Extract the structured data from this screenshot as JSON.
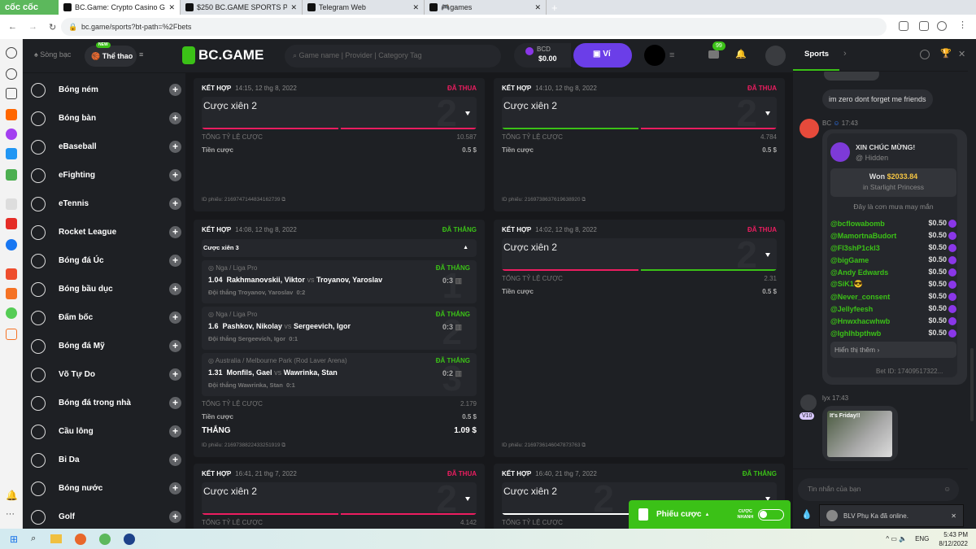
{
  "browser": {
    "brand": "cốc cốc",
    "tabs": [
      {
        "title": "BC.Game: Crypto Casino Gam",
        "active": true
      },
      {
        "title": "$250 BC.GAME SPORTS PARL"
      },
      {
        "title": "Telegram Web"
      },
      {
        "title": "🎮games"
      }
    ],
    "url": "bc.game/sports?bt-path=%2Fbets"
  },
  "header": {
    "casino": "Sòng bạc",
    "sports": "Thể thao",
    "new_badge": "NEW",
    "logo": "BC.GAME",
    "search_placeholder": "Game name | Provider | Category Tag",
    "currency": "BCD",
    "balance": "$0.00",
    "wallet": "Ví",
    "mail_count": "99"
  },
  "nav": {
    "items": [
      "Bóng ném",
      "Bóng bàn",
      "eBaseball",
      "eFighting",
      "eTennis",
      "Rocket League",
      "Bóng đá Úc",
      "Bóng bầu dục",
      "Đấm bốc",
      "Bóng đá Mỹ",
      "Võ Tự Do",
      "Bóng đá trong nhà",
      "Cầu lông",
      "Bi Da",
      "Bóng nước",
      "Golf"
    ]
  },
  "labels": {
    "type": "KẾT HỢP",
    "total_odds": "TỔNG TỶ LỆ CƯỢC",
    "stake": "Tiền cược",
    "ticket_id": "ID phiếu:",
    "win": "THẮNG",
    "lost": "ĐÃ THUA",
    "won": "ĐÃ THẮNG"
  },
  "bets": [
    {
      "time": "14:15, 12 thg 8, 2022",
      "status": "lost",
      "name": "Cược xiên 2",
      "count": "2",
      "legs": [
        "lost",
        "lost"
      ],
      "odds": "10.587",
      "stake": "0.5 $",
      "id": "2169747144834162739"
    },
    {
      "time": "14:10, 12 thg 8, 2022",
      "status": "lost",
      "name": "Cược xiên 2",
      "count": "2",
      "legs": [
        "won",
        "lost"
      ],
      "odds": "4.784",
      "stake": "0.5 $",
      "id": "2169738637619638920"
    },
    {
      "time": "14:08, 12 thg 8, 2022",
      "status": "won",
      "name": "Cược xiên 3",
      "expanded": true,
      "odds": "2.179",
      "stake": "0.5 $",
      "payout": "1.09 $",
      "id": "2169738822433251919",
      "selections": [
        {
          "league": "Nga / Liga Pro",
          "odds": "1.04",
          "home": "Rakhmanovskii, Viktor",
          "away": "Troyanov, Yaroslav",
          "pick": "Đội thắng Troyanov, Yaroslav",
          "pick_score": "0:2",
          "score": "0:3",
          "status": "ĐÃ THẮNG"
        },
        {
          "league": "Nga / Liga Pro",
          "odds": "1.6",
          "home": "Pashkov, Nikolay",
          "away": "Sergeevich, Igor",
          "pick": "Đội thắng Sergeevich, Igor",
          "pick_score": "0:1",
          "score": "0:3",
          "status": "ĐÃ THẮNG"
        },
        {
          "league": "Australia / Melbourne Park (Rod Laver Arena)",
          "odds": "1.31",
          "home": "Monfils, Gael",
          "away": "Wawrinka, Stan",
          "pick": "Đội thắng Wawrinka, Stan",
          "pick_score": "0:1",
          "score": "0:2",
          "status": "ĐÃ THẮNG"
        }
      ],
      "vs": "vs"
    },
    {
      "time": "14:02, 12 thg 8, 2022",
      "status": "lost",
      "name": "Cược xiên 2",
      "count": "2",
      "legs": [
        "lost",
        "won"
      ],
      "odds": "2.31",
      "stake": "0.5 $",
      "id": "2169736146047873763"
    },
    {
      "time": "16:41, 21 thg 7, 2022",
      "status": "lost",
      "name": "Cược xiên 2",
      "count": "2",
      "legs": [
        "lost",
        "lost"
      ],
      "odds": "4.142"
    },
    {
      "time": "16:40, 21 thg 7, 2022",
      "status": "won",
      "name": "Cược xiên 2",
      "count": "2",
      "legs": [
        "white",
        "white"
      ],
      "odds": ""
    }
  ],
  "chat": {
    "tab": "Sports",
    "msg1": "im zero dont forget me friends",
    "bc_user": "BC",
    "bc_time": "17:43",
    "congrats": "XIN CHÚC MỪNG!",
    "hidden": "@ Hidden",
    "won_label": "Won",
    "won_amount": "$2033.84",
    "game": "in Starlight Princess",
    "rain": "Đây là cơn mưa may mắn",
    "winners": [
      "@bcflowabomb",
      "@MamortnaBudort",
      "@Fl3shP1ckl3",
      "@bigGame",
      "@Andy Edwards",
      "@SiK1😎",
      "@Never_consent",
      "@Jellyfeesh",
      "@Hnwxhacwhwb",
      "@Ighlhbpthwb"
    ],
    "winner_amount": "$0.50",
    "show_more": "Hiển thị thêm ›",
    "bet_id": "Bet ID: 17409517322...",
    "user2": "lyx",
    "time2": "17:43",
    "vip": "V10",
    "gif_text": "It's Friday!!",
    "input_placeholder": "Tin nhắn của bạn",
    "toast": "BLV Phụ Ka đã online."
  },
  "slip": {
    "label": "Phiếu cược",
    "quick": "CƯỢC NHANH"
  },
  "taskbar": {
    "lang": "ENG",
    "time": "5:43 PM",
    "date": "8/12/2022"
  },
  "colors": {
    "lost": "#ed1d60",
    "won": "#3bc117",
    "wallet": "#6b3ee8"
  }
}
